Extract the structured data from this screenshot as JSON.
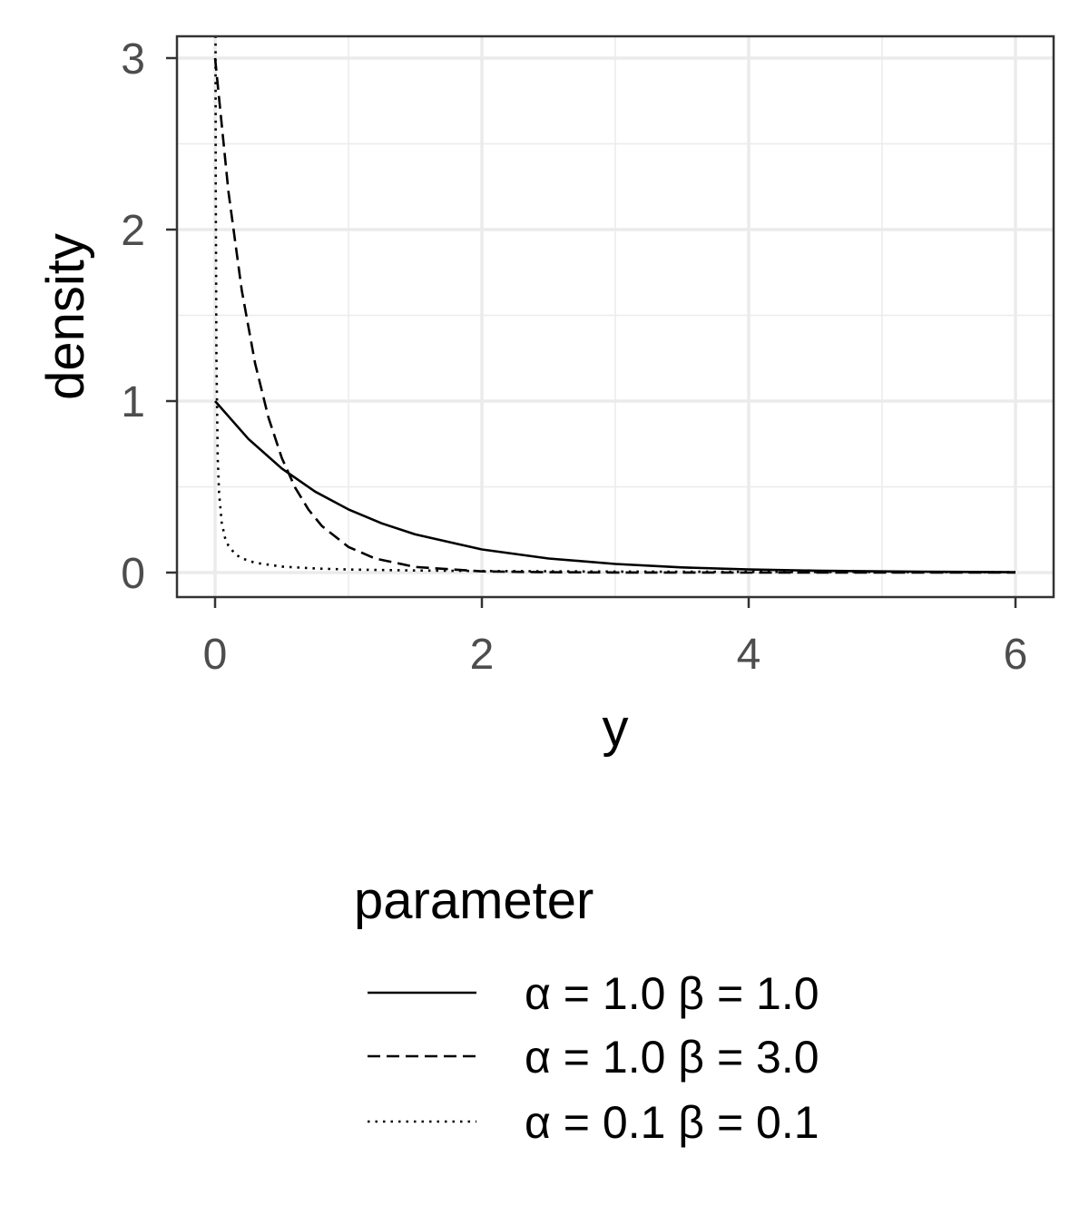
{
  "chart_data": {
    "type": "line",
    "xlabel": "y",
    "ylabel": "density",
    "xlim": [
      -0.3,
      6.3
    ],
    "ylim": [
      -0.14,
      3.13
    ],
    "x_ticks": [
      0,
      2,
      4,
      6
    ],
    "y_ticks": [
      0,
      1,
      2,
      3
    ],
    "x_minor_ticks": [
      1,
      3,
      5
    ],
    "y_minor_ticks": [
      0.5,
      1.5,
      2.5
    ],
    "grid": true,
    "legend": {
      "title": "parameter",
      "position": "bottom"
    },
    "series": [
      {
        "name": "α = 1.0  β = 1.0",
        "linestyle": "solid",
        "x": [
          0,
          0.25,
          0.5,
          0.75,
          1,
          1.25,
          1.5,
          2,
          2.5,
          3,
          3.5,
          4,
          4.5,
          5,
          5.5,
          6
        ],
        "y": [
          1.0,
          0.779,
          0.607,
          0.472,
          0.368,
          0.287,
          0.223,
          0.135,
          0.082,
          0.05,
          0.03,
          0.018,
          0.011,
          0.007,
          0.004,
          0.002
        ]
      },
      {
        "name": "α = 1.0  β = 3.0",
        "linestyle": "dashed",
        "x": [
          0,
          0.1,
          0.2,
          0.3,
          0.4,
          0.5,
          0.6,
          0.7,
          0.8,
          1,
          1.2,
          1.5,
          2,
          2.5,
          3,
          4,
          5,
          6
        ],
        "y": [
          3.0,
          2.222,
          1.646,
          1.22,
          0.904,
          0.669,
          0.496,
          0.367,
          0.272,
          0.149,
          0.082,
          0.033,
          0.007,
          0.002,
          0.0004,
          0.0,
          0.0,
          0.0
        ]
      },
      {
        "name": "α = 0.1  β = 0.1",
        "linestyle": "dotted",
        "x": [
          0.0035,
          0.005,
          0.01,
          0.02,
          0.03,
          0.05,
          0.075,
          0.1,
          0.15,
          0.2,
          0.3,
          0.5,
          0.75,
          1,
          1.5,
          2,
          3,
          4,
          5,
          6
        ],
        "y": [
          3.13,
          2.31,
          1.245,
          0.671,
          0.465,
          0.291,
          0.202,
          0.157,
          0.108,
          0.083,
          0.057,
          0.035,
          0.024,
          0.018,
          0.012,
          0.009,
          0.006,
          0.004,
          0.003,
          0.002
        ]
      }
    ]
  }
}
